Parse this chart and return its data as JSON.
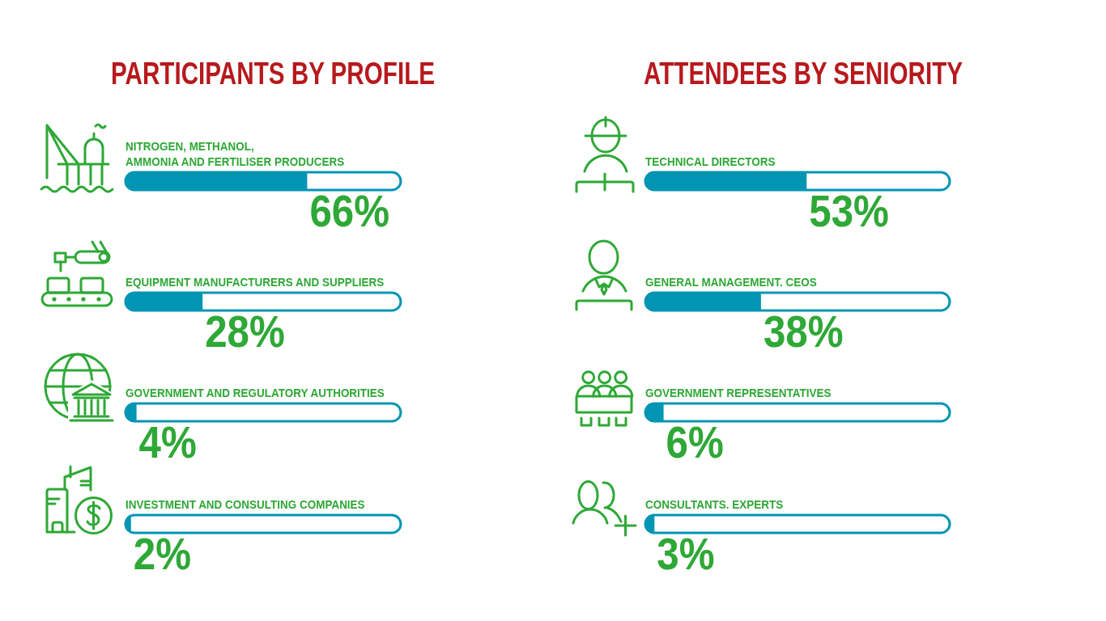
{
  "chart_data": [
    {
      "type": "bar",
      "orientation": "horizontal",
      "title": "PARTICIPANTS BY PROFILE",
      "categories": [
        "NITROGEN, METHANOL,\nAMMONIA AND FERTILISER PRODUCERS",
        "EQUIPMENT MANUFACTURERS AND SUPPLIERS",
        "GOVERNMENT AND REGULATORY AUTHORITIES",
        "INVESTMENT AND CONSULTING COMPANIES"
      ],
      "values": [
        66,
        28,
        4,
        2
      ],
      "value_labels": [
        "66%",
        "28%",
        "4%",
        "2%"
      ],
      "color": "#0095b3",
      "xlim": [
        0,
        100
      ],
      "tick_labels": false
    },
    {
      "type": "bar",
      "orientation": "horizontal",
      "title": "ATTENDEES BY SENIORITY",
      "categories": [
        "TECHNICAL DIRECTORS",
        "GENERAL MANAGEMENT. CEOS",
        "GOVERNMENT REPRESENTATIVES",
        "CONSULTANTS. EXPERTS"
      ],
      "values": [
        53,
        38,
        6,
        3
      ],
      "value_labels": [
        "53%",
        "38%",
        "6%",
        "3%"
      ],
      "color": "#0095b3",
      "xlim": [
        0,
        100
      ],
      "tick_labels": false
    }
  ]
}
